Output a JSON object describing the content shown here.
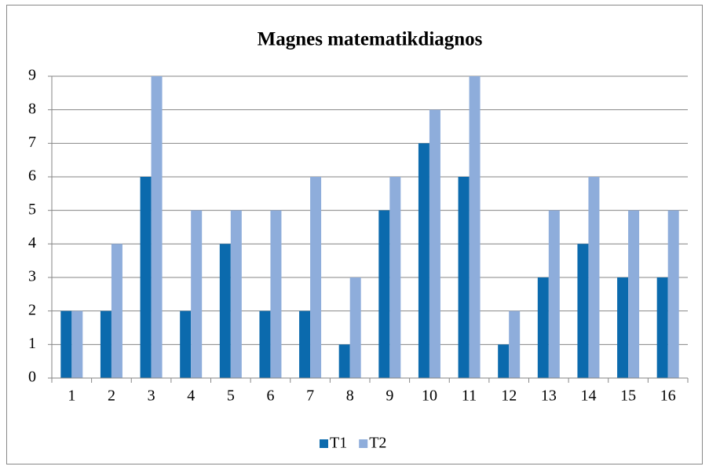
{
  "chart_data": {
    "type": "bar",
    "title": "Magnes matematikdiagnos",
    "categories": [
      "1",
      "2",
      "3",
      "4",
      "5",
      "6",
      "7",
      "8",
      "9",
      "10",
      "11",
      "12",
      "13",
      "14",
      "15",
      "16"
    ],
    "series": [
      {
        "name": "T1",
        "color": "#0b6aad",
        "values": [
          2,
          2,
          6,
          2,
          4,
          2,
          2,
          1,
          5,
          7,
          6,
          1,
          3,
          4,
          3,
          3
        ]
      },
      {
        "name": "T2",
        "color": "#8eaddb",
        "values": [
          2,
          4,
          9,
          5,
          5,
          5,
          6,
          3,
          6,
          8,
          9,
          2,
          5,
          6,
          5,
          5
        ]
      }
    ],
    "ylim": [
      0,
      9
    ],
    "yticks": [
      0,
      1,
      2,
      3,
      4,
      5,
      6,
      7,
      8,
      9
    ],
    "grid": true,
    "legend": "bottom"
  }
}
